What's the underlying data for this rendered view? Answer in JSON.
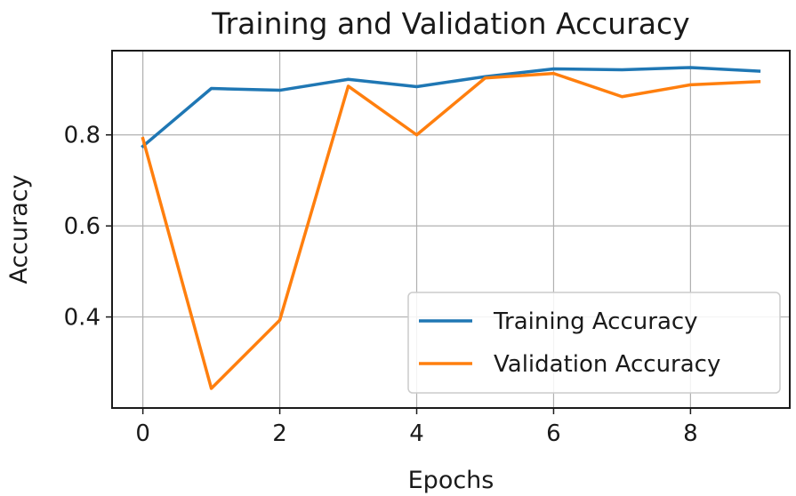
{
  "chart_data": {
    "type": "line",
    "title": "Training and Validation Accuracy",
    "xlabel": "Epochs",
    "ylabel": "Accuracy",
    "x": [
      0,
      1,
      2,
      3,
      4,
      5,
      6,
      7,
      8,
      9
    ],
    "xlim": [
      -0.45,
      9.45
    ],
    "ylim": [
      0.2,
      0.985
    ],
    "xticks": [
      0,
      2,
      4,
      6,
      8
    ],
    "yticks": [
      0.4,
      0.6,
      0.8
    ],
    "xtick_labels": [
      "0",
      "2",
      "4",
      "6",
      "8"
    ],
    "ytick_labels": [
      "0.4",
      "0.6",
      "0.8"
    ],
    "grid": true,
    "legend_position": "lower-right",
    "series": [
      {
        "name": "Training Accuracy",
        "color": "#1f77b4",
        "values": [
          0.775,
          0.902,
          0.898,
          0.922,
          0.906,
          0.928,
          0.945,
          0.943,
          0.948,
          0.94
        ]
      },
      {
        "name": "Validation Accuracy",
        "color": "#ff7f0e",
        "values": [
          0.792,
          0.243,
          0.393,
          0.907,
          0.8,
          0.925,
          0.935,
          0.884,
          0.91,
          0.917
        ]
      }
    ]
  }
}
